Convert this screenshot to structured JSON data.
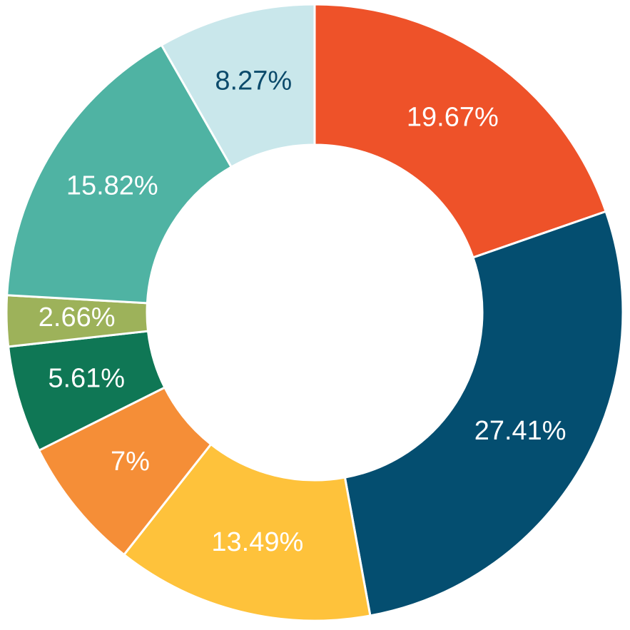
{
  "chart_data": {
    "type": "donut",
    "values": [
      19.67,
      27.41,
      13.49,
      7,
      5.61,
      2.66,
      15.82,
      8.27
    ],
    "value_labels": [
      "19.67%",
      "27.41%",
      "13.49%",
      "7%",
      "5.61%",
      "2.66%",
      "15.82%",
      "8.27%"
    ],
    "colors": [
      "#ee5229",
      "#044e70",
      "#fec23b",
      "#f58e37",
      "#0f7755",
      "#9db25a",
      "#4fb3a3",
      "#c9e7eb"
    ],
    "label_colors": [
      "#ffffff",
      "#ffffff",
      "#ffffff",
      "#ffffff",
      "#ffffff",
      "#ffffff",
      "#ffffff",
      "#0b4a6b"
    ]
  }
}
